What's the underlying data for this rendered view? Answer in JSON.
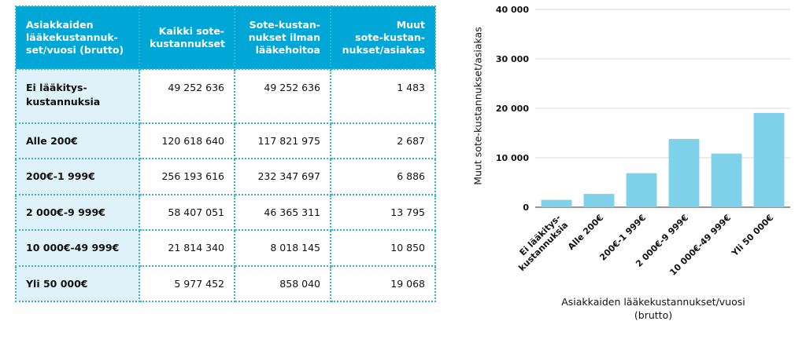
{
  "table": {
    "headers": [
      "Asiakkaiden\nlääkekustannuk-\nset/vuosi (brutto)",
      "Kaikki sote-\nkustannukset",
      "Sote-kustan-\nnukset ilman\nlääkehoitoa",
      "Muut\nsote-kustan-\nnukset/asiakas"
    ],
    "rows": [
      {
        "label": "Ei lääkitys-\nkustannuksia",
        "all": "49 252 636",
        "no_meds": "49 252 636",
        "per_client": "1 483"
      },
      {
        "label": "Alle 200€",
        "all": "120 618 640",
        "no_meds": "117 821 975",
        "per_client": "2 687"
      },
      {
        "label": "200€-1 999€",
        "all": "256 193 616",
        "no_meds": "232 347 697",
        "per_client": "6 886"
      },
      {
        "label": "2 000€-9 999€",
        "all": "58 407 051",
        "no_meds": "46 365 311",
        "per_client": "13 795"
      },
      {
        "label": "10 000€-49 999€",
        "all": "21 814 340",
        "no_meds": "8 018 145",
        "per_client": "10 850"
      },
      {
        "label": "Yli 50 000€",
        "all": "5 977 452",
        "no_meds": "858 040",
        "per_client": "19 068"
      }
    ]
  },
  "chart_data": {
    "type": "bar",
    "categories": [
      "Ei lääkitys-\nkustannuksia",
      "Alle 200€",
      "200€-1 999€",
      "2 000€-9 999€",
      "10 000€-49 999€",
      "Yli 50 000€"
    ],
    "values": [
      1483,
      2687,
      6886,
      13795,
      10850,
      19068
    ],
    "ylabel": "Muut sote-kustannukset/asiakas",
    "xlabel": "Asiakkaiden lääkekustannukset/vuosi\n(brutto)",
    "yticks": [
      "0",
      "10 000",
      "20 000",
      "30 000",
      "40 000"
    ],
    "ylim": [
      0,
      40000
    ],
    "grid": true,
    "bar_color": "#7fd1ea",
    "grid_color": "#d8d8d8"
  }
}
